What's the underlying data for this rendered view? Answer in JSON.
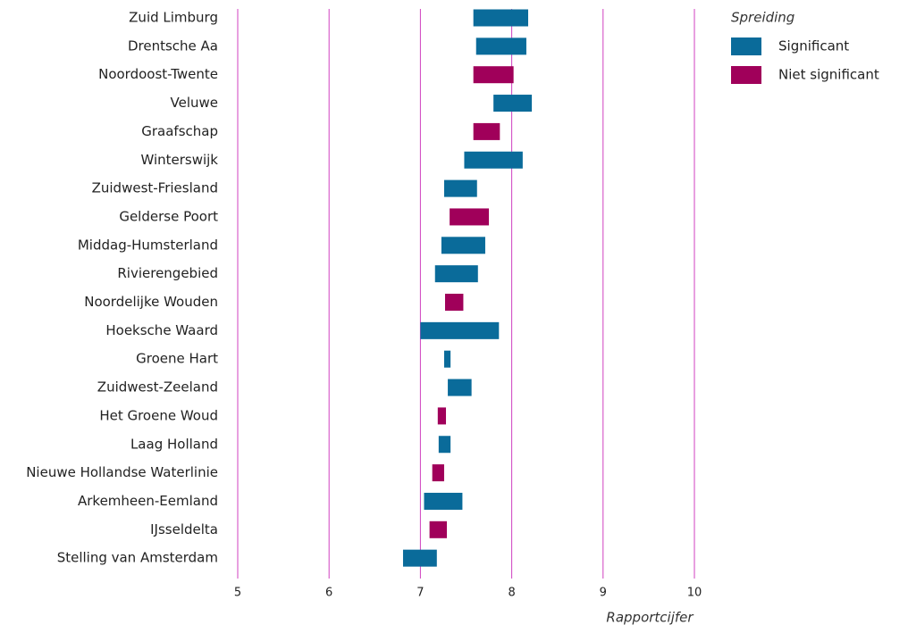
{
  "chart_data": {
    "type": "range-bar",
    "categories": [
      "Zuid Limburg",
      "Drentsche Aa",
      "Noordoost-Twente",
      "Veluwe",
      "Graafschap",
      "Winterswijk",
      "Zuidwest-Friesland",
      "Gelderse Poort",
      "Middag-Humsterland",
      "Rivierengebied",
      "Noordelijke Wouden",
      "Hoeksche Waard",
      "Groene Hart",
      "Zuidwest-Zeeland",
      "Het Groene Woud",
      "Laag Holland",
      "Nieuwe Hollandse Waterlinie",
      "Arkemheen-Eemland",
      "IJsseldelta",
      "Stelling van Amsterdam"
    ],
    "series": [
      {
        "name": "Significant",
        "color": "#0a6b9a",
        "low": [
          7.58,
          7.61,
          null,
          7.8,
          null,
          7.48,
          7.26,
          null,
          7.23,
          7.16,
          null,
          7.0,
          7.26,
          7.3,
          null,
          7.2,
          null,
          7.04,
          null,
          6.81
        ],
        "high": [
          8.18,
          8.16,
          null,
          8.22,
          null,
          8.12,
          7.62,
          null,
          7.71,
          7.63,
          null,
          7.86,
          7.33,
          7.56,
          null,
          7.33,
          null,
          7.46,
          null,
          7.18
        ]
      },
      {
        "name": "Niet significant",
        "color": "#a0005a",
        "low": [
          null,
          null,
          7.58,
          null,
          7.58,
          null,
          null,
          7.32,
          null,
          null,
          7.27,
          null,
          null,
          null,
          7.19,
          null,
          7.13,
          null,
          7.1,
          null
        ],
        "high": [
          null,
          null,
          8.02,
          null,
          7.87,
          null,
          null,
          7.75,
          null,
          null,
          7.47,
          null,
          null,
          null,
          7.28,
          null,
          7.26,
          null,
          7.29,
          null
        ]
      }
    ],
    "legend_title": "Spreiding",
    "x_label": "Rapportcijfer",
    "xlim": [
      5,
      10
    ],
    "xticks": [
      5,
      6,
      7,
      8,
      9,
      10
    ],
    "grid": true,
    "grid_color": "#d040c0"
  }
}
